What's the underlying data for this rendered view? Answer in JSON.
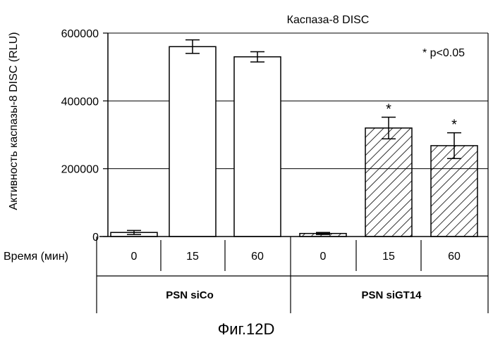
{
  "chart_data": {
    "type": "bar",
    "title": "Каспаза-8 DISC",
    "ylabel": "Активность каспазы-8 DISC (RLU)",
    "ylim": [
      0,
      600000
    ],
    "yticks": [
      "0",
      "200000",
      "400000",
      "600000"
    ],
    "ytick_values": [
      0,
      200000,
      400000,
      600000
    ],
    "grid": "horizontal",
    "annotation": "* p<0.05",
    "row_label": "Время (мин)",
    "groups": [
      {
        "name": "PSN siCo",
        "fill": "open",
        "bars": [
          {
            "time": "0",
            "value": 12000,
            "error": 6000,
            "significant": false
          },
          {
            "time": "15",
            "value": 560000,
            "error": 20000,
            "significant": false
          },
          {
            "time": "60",
            "value": 530000,
            "error": 15000,
            "significant": false
          }
        ]
      },
      {
        "name": "PSN siGT14",
        "fill": "hatched",
        "bars": [
          {
            "time": "0",
            "value": 9000,
            "error": 3000,
            "significant": false
          },
          {
            "time": "15",
            "value": 320000,
            "error": 32000,
            "significant": true
          },
          {
            "time": "60",
            "value": 268000,
            "error": 38000,
            "significant": true
          }
        ]
      }
    ]
  },
  "caption": "Фиг.12D",
  "colors": {
    "bar_fill": "#ffffff",
    "stroke": "#000000",
    "grid": "#000000"
  }
}
